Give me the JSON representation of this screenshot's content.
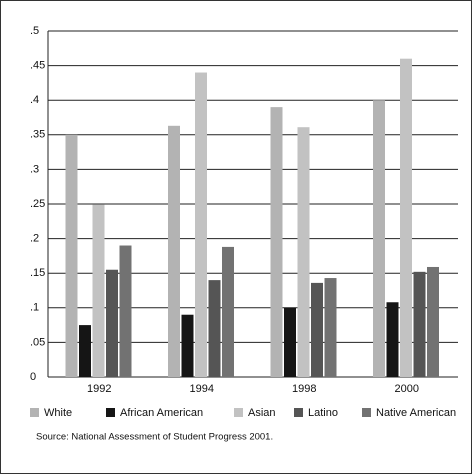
{
  "chart_data": {
    "type": "bar",
    "categories": [
      "1992",
      "1994",
      "1998",
      "2000"
    ],
    "series": [
      {
        "name": "White",
        "color": "#b3b3b3",
        "values": [
          0.35,
          0.363,
          0.39,
          0.4
        ]
      },
      {
        "name": "African American",
        "color": "#151515",
        "values": [
          0.075,
          0.09,
          0.1,
          0.108
        ]
      },
      {
        "name": "Asian",
        "color": "#c2c2c2",
        "values": [
          0.249,
          0.44,
          0.361,
          0.46
        ]
      },
      {
        "name": "Latino",
        "color": "#555555",
        "values": [
          0.155,
          0.14,
          0.136,
          0.152
        ]
      },
      {
        "name": "Native American",
        "color": "#727272",
        "values": [
          0.19,
          0.188,
          0.143,
          0.159
        ]
      }
    ],
    "ylim": [
      0,
      0.5
    ],
    "yticks": [
      0,
      {
        "value": 0.05,
        "label": ".05"
      },
      {
        "value": 0.1,
        "label": ".1"
      },
      {
        "value": 0.15,
        "label": ".15"
      },
      {
        "value": 0.2,
        "label": ".2"
      },
      {
        "value": 0.25,
        "label": ".25"
      },
      {
        "value": 0.3,
        "label": ".3"
      },
      {
        "value": 0.35,
        "label": ".35"
      },
      {
        "value": 0.4,
        "label": ".4"
      },
      {
        "value": 0.45,
        "label": ".45"
      },
      {
        "value": 0.5,
        "label": ".5"
      }
    ],
    "grid": true,
    "legend": "bottom",
    "source": "Source: National Assessment of Student Progress 2001."
  }
}
